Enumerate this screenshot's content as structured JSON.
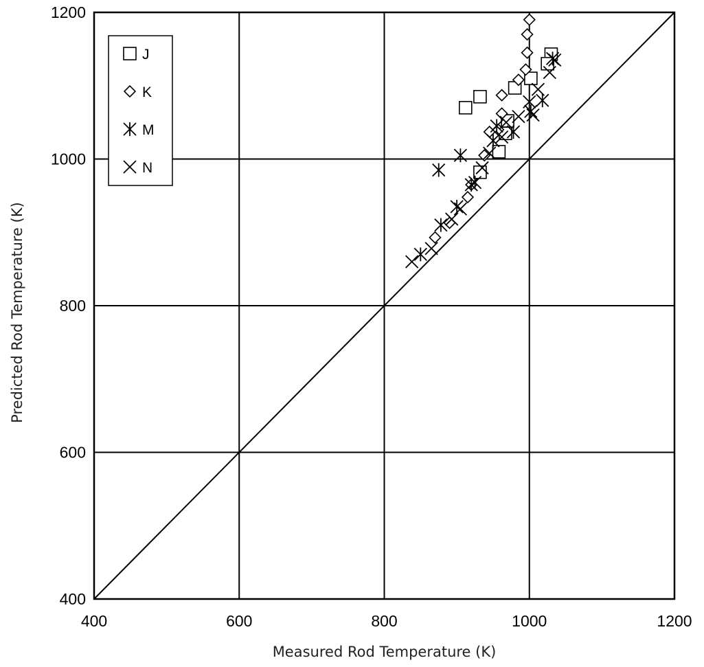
{
  "chart_data": {
    "type": "scatter",
    "title": "",
    "xlabel": "Measured Rod Temperature (K)",
    "ylabel": "Predicted Rod Temperature (K)",
    "xlim": [
      400,
      1200
    ],
    "ylim": [
      400,
      1200
    ],
    "x_ticks": [
      "400",
      "600",
      "800",
      "1000",
      "1200"
    ],
    "y_ticks": [
      "400",
      "600",
      "800",
      "1000",
      "1200"
    ],
    "grid": true,
    "legend_position": "top-left",
    "reference_line": {
      "name": "y = x",
      "from": [
        400,
        400
      ],
      "to": [
        1200,
        1200
      ]
    },
    "series": [
      {
        "name": "J",
        "marker": "square",
        "points": [
          [
            912,
            1070
          ],
          [
            932,
            1085
          ],
          [
            980,
            1097
          ],
          [
            1002,
            1110
          ],
          [
            1030,
            1143
          ],
          [
            1025,
            1130
          ],
          [
            970,
            1052
          ],
          [
            967,
            1035
          ],
          [
            958,
            1010
          ],
          [
            932,
            982
          ]
        ]
      },
      {
        "name": "K",
        "marker": "diamond",
        "points": [
          [
            1000,
            1190
          ],
          [
            997,
            1170
          ],
          [
            997,
            1145
          ],
          [
            995,
            1122
          ],
          [
            985,
            1108
          ],
          [
            962,
            1087
          ],
          [
            962,
            1062
          ],
          [
            957,
            1040
          ],
          [
            945,
            1037
          ],
          [
            938,
            1005
          ],
          [
            920,
            965
          ],
          [
            915,
            948
          ],
          [
            890,
            913
          ],
          [
            870,
            893
          ]
        ]
      },
      {
        "name": "M",
        "marker": "asterisk",
        "points": [
          [
            905,
            1005
          ],
          [
            875,
            985
          ],
          [
            920,
            965
          ],
          [
            925,
            968
          ],
          [
            950,
            1025
          ],
          [
            955,
            1045
          ],
          [
            978,
            1037
          ],
          [
            1002,
            1065
          ],
          [
            1018,
            1080
          ],
          [
            1032,
            1137
          ],
          [
            900,
            935
          ],
          [
            878,
            910
          ],
          [
            850,
            870
          ]
        ]
      },
      {
        "name": "N",
        "marker": "x",
        "points": [
          [
            838,
            860
          ],
          [
            865,
            878
          ],
          [
            893,
            918
          ],
          [
            905,
            932
          ],
          [
            935,
            988
          ],
          [
            945,
            1008
          ],
          [
            962,
            1030
          ],
          [
            968,
            1050
          ],
          [
            985,
            1058
          ],
          [
            1000,
            1078
          ],
          [
            1005,
            1060
          ],
          [
            1012,
            1095
          ],
          [
            1028,
            1118
          ],
          [
            1035,
            1135
          ]
        ]
      }
    ]
  }
}
